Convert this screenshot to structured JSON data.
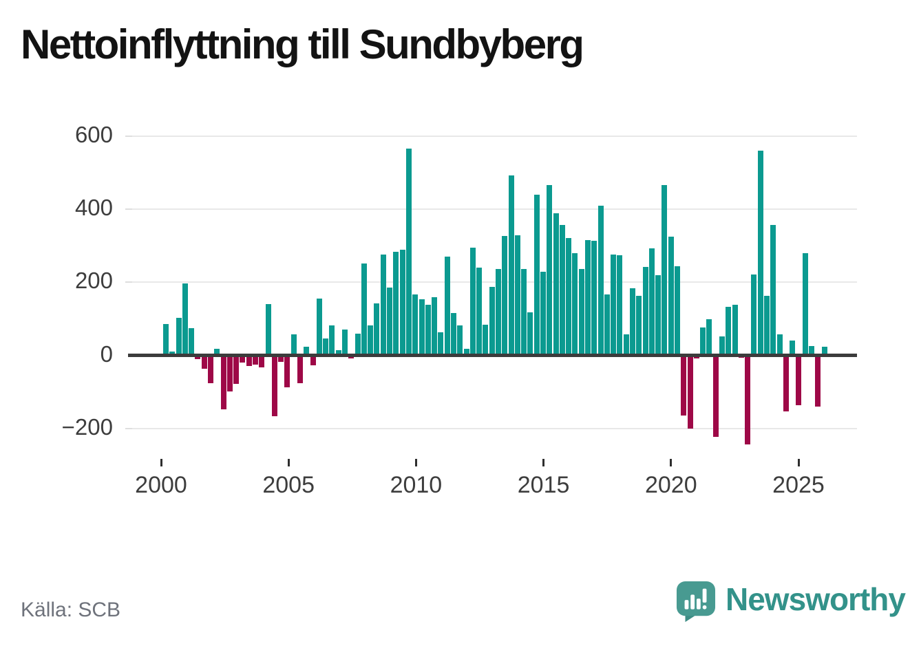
{
  "title": "Nettoinflyttning till Sundbyberg",
  "source": "Källa: SCB",
  "logo": {
    "text": "Newsworthy"
  },
  "colors": {
    "positive_bar": "#0b9a90",
    "negative_bar": "#9e0847",
    "gridline": "#e8e8e8",
    "zero_axis": "#3c3c3c",
    "axis_label": "#3d3d3d",
    "source_text": "#6e727b",
    "logo_teal": "#33928a"
  },
  "chart_data": {
    "type": "bar",
    "title": "Nettoinflyttning till Sundbyberg",
    "x_start": "2000 Q1",
    "x_frequency": "quarterly",
    "values": [
      85,
      10,
      103,
      197,
      75,
      -10,
      -36,
      -76,
      17,
      -147,
      -99,
      -78,
      -19,
      -29,
      -25,
      -32,
      140,
      -167,
      -17,
      -88,
      58,
      -76,
      23,
      -27,
      156,
      46,
      82,
      15,
      70,
      -8,
      59,
      252,
      81,
      142,
      275,
      186,
      284,
      289,
      566,
      167,
      153,
      139,
      160,
      63,
      270,
      115,
      81,
      17,
      295,
      240,
      83,
      187,
      236,
      327,
      493,
      329,
      236,
      117,
      440,
      228,
      465,
      388,
      356,
      321,
      280,
      236,
      315,
      313,
      409,
      167,
      275,
      274,
      58,
      183,
      163,
      241,
      292,
      219,
      465,
      324,
      244,
      -165,
      -200,
      -8,
      77,
      99,
      -223,
      52,
      132,
      138,
      -7,
      -243,
      221,
      560,
      163,
      357,
      58,
      -154,
      41,
      -137,
      280,
      25,
      -140,
      23
    ],
    "x_ticks": [
      "2000",
      "2005",
      "2010",
      "2015",
      "2020",
      "2025"
    ],
    "y_ticks": [
      {
        "label": "600",
        "value": 600
      },
      {
        "label": "400",
        "value": 400
      },
      {
        "label": "200",
        "value": 200
      },
      {
        "label": "0",
        "value": 0
      },
      {
        "label": "−200",
        "value": -200
      }
    ],
    "ylim": [
      -260,
      640
    ],
    "grid": true,
    "legend": "none",
    "positive_color": "#0b9a90",
    "negative_color": "#9e0847"
  }
}
